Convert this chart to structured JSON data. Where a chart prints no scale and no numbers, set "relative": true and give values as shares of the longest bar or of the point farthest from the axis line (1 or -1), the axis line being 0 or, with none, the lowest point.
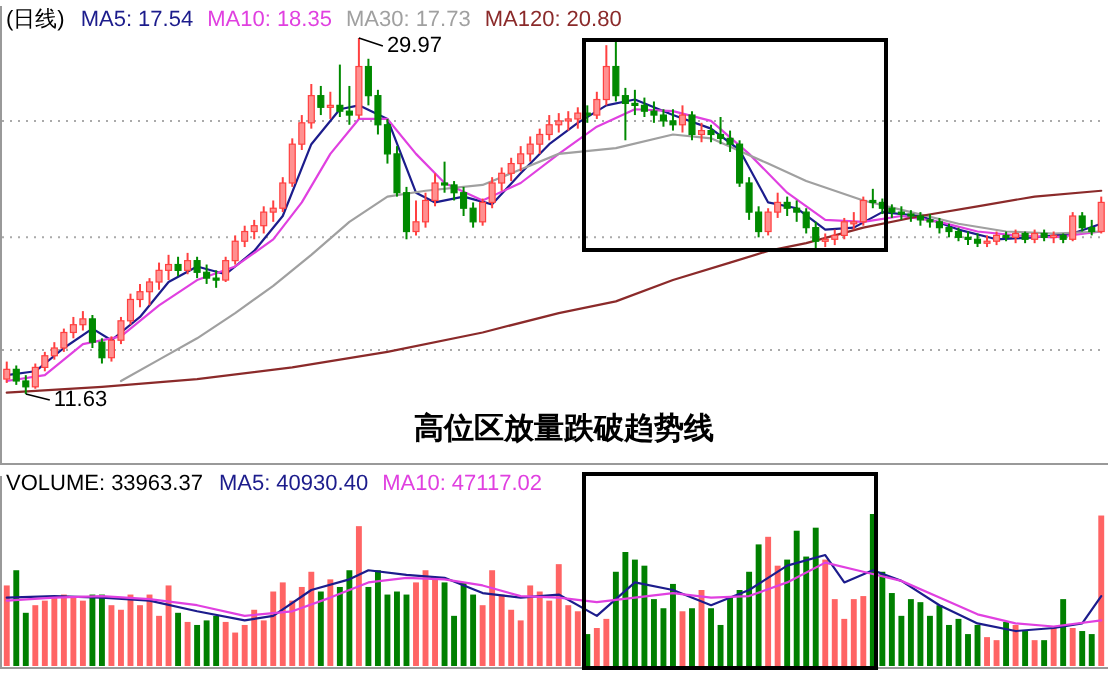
{
  "chart_data": [
    {
      "type": "candlestick",
      "title": "(日线)",
      "legend": "top left",
      "grid": "y",
      "yticks": [
        {
          "value": 25.7,
          "label": null
        },
        {
          "value": 19.7,
          "label": null
        },
        {
          "value": 13.9,
          "label": null
        }
      ],
      "categories": [
        null,
        null,
        null,
        null,
        null,
        null,
        null,
        null,
        null,
        null,
        null,
        null,
        null,
        null,
        null,
        null,
        null,
        null,
        null,
        null,
        null,
        null,
        null,
        null,
        null,
        null,
        null,
        null,
        null,
        null,
        null,
        null,
        null,
        null,
        null,
        null,
        null,
        null,
        null,
        null,
        null,
        null,
        null,
        null,
        null,
        null,
        null,
        null,
        null,
        null,
        null,
        null,
        null,
        null,
        null,
        null,
        null,
        null,
        null,
        null,
        null,
        null,
        null,
        null,
        null,
        null,
        null,
        null,
        null,
        null,
        null,
        null,
        null,
        null,
        null,
        null,
        null,
        null,
        null,
        null,
        null,
        null,
        null,
        null,
        null,
        null,
        null,
        null,
        null,
        null,
        null,
        null,
        null,
        null,
        null,
        null,
        null,
        null,
        null,
        null,
        null,
        null,
        null,
        null,
        null,
        null,
        null,
        null,
        null,
        null,
        null,
        null,
        null,
        null,
        null,
        null
      ],
      "ohlc": [
        [
          12.4,
          13.3,
          12.2,
          12.9
        ],
        [
          12.9,
          13.1,
          12.1,
          12.3
        ],
        [
          12.3,
          12.6,
          11.63,
          12.0
        ],
        [
          12.0,
          13.2,
          11.9,
          13.0
        ],
        [
          13.0,
          13.8,
          12.8,
          13.6
        ],
        [
          13.6,
          14.3,
          13.4,
          14.0
        ],
        [
          14.0,
          15.0,
          13.8,
          14.8
        ],
        [
          14.8,
          15.6,
          14.5,
          15.2
        ],
        [
          15.2,
          15.9,
          14.9,
          15.5
        ],
        [
          15.5,
          15.7,
          14.0,
          14.3
        ],
        [
          14.3,
          14.5,
          13.2,
          13.5
        ],
        [
          13.5,
          14.6,
          13.3,
          14.4
        ],
        [
          14.4,
          15.6,
          14.2,
          15.4
        ],
        [
          15.4,
          16.8,
          15.2,
          16.5
        ],
        [
          16.5,
          17.3,
          16.1,
          16.9
        ],
        [
          16.9,
          17.6,
          16.2,
          17.4
        ],
        [
          17.4,
          18.4,
          17.0,
          18.0
        ],
        [
          18.0,
          18.8,
          17.5,
          18.3
        ],
        [
          18.3,
          18.7,
          17.7,
          18.0
        ],
        [
          18.0,
          18.9,
          17.8,
          18.5
        ],
        [
          18.5,
          18.7,
          17.6,
          17.9
        ],
        [
          17.9,
          18.3,
          17.3,
          17.6
        ],
        [
          17.6,
          18.0,
          17.1,
          17.5
        ],
        [
          17.5,
          18.7,
          17.4,
          18.5
        ],
        [
          18.5,
          19.8,
          18.3,
          19.5
        ],
        [
          19.5,
          20.3,
          19.2,
          20.0
        ],
        [
          20.0,
          20.6,
          19.6,
          20.3
        ],
        [
          20.3,
          21.3,
          19.9,
          21.0
        ],
        [
          21.0,
          21.6,
          20.5,
          21.2
        ],
        [
          21.2,
          22.8,
          21.0,
          22.5
        ],
        [
          22.5,
          24.8,
          22.3,
          24.5
        ],
        [
          24.5,
          26.0,
          24.2,
          25.6
        ],
        [
          25.6,
          27.6,
          25.3,
          27.0
        ],
        [
          27.0,
          27.5,
          26.0,
          26.4
        ],
        [
          26.4,
          27.2,
          25.8,
          26.5
        ],
        [
          26.5,
          28.6,
          25.9,
          26.2
        ],
        [
          26.2,
          27.5,
          25.5,
          26.0
        ],
        [
          26.0,
          29.97,
          25.8,
          28.5
        ],
        [
          28.5,
          28.9,
          26.5,
          27.0
        ],
        [
          27.0,
          27.3,
          25.0,
          25.5
        ],
        [
          25.5,
          25.8,
          23.5,
          24.0
        ],
        [
          24.0,
          24.4,
          21.8,
          22.0
        ],
        [
          22.0,
          22.3,
          19.6,
          20.0
        ],
        [
          20.0,
          21.6,
          19.8,
          20.5
        ],
        [
          20.5,
          22.0,
          20.2,
          21.6
        ],
        [
          21.6,
          23.0,
          21.3,
          22.5
        ],
        [
          22.5,
          23.6,
          22.0,
          22.4
        ],
        [
          22.4,
          22.6,
          21.6,
          22.0
        ],
        [
          22.0,
          22.3,
          20.8,
          21.2
        ],
        [
          21.2,
          21.5,
          20.2,
          20.5
        ],
        [
          20.5,
          21.7,
          20.3,
          21.5
        ],
        [
          21.5,
          22.8,
          21.2,
          22.5
        ],
        [
          22.5,
          23.3,
          22.1,
          23.0
        ],
        [
          23.0,
          23.8,
          22.6,
          23.5
        ],
        [
          23.5,
          24.4,
          23.1,
          24.0
        ],
        [
          24.0,
          24.9,
          23.6,
          24.5
        ],
        [
          24.5,
          25.3,
          24.0,
          25.0
        ],
        [
          25.0,
          26.0,
          24.7,
          25.5
        ],
        [
          25.5,
          26.1,
          25.1,
          25.7
        ],
        [
          25.7,
          26.2,
          25.2,
          25.8
        ],
        [
          25.8,
          26.4,
          25.3,
          26.1
        ],
        [
          26.1,
          26.5,
          25.6,
          26.0
        ],
        [
          26.0,
          27.2,
          25.8,
          26.8
        ],
        [
          26.8,
          29.6,
          26.5,
          28.5
        ],
        [
          28.5,
          29.9,
          26.7,
          27.0
        ],
        [
          27.0,
          27.4,
          24.7,
          26.6
        ],
        [
          26.6,
          27.3,
          26.0,
          26.5
        ],
        [
          26.5,
          26.9,
          25.9,
          26.2
        ],
        [
          26.2,
          26.7,
          25.6,
          26.0
        ],
        [
          26.0,
          26.3,
          25.4,
          25.7
        ],
        [
          25.7,
          26.3,
          25.2,
          25.5
        ],
        [
          25.5,
          26.5,
          25.1,
          26.0
        ],
        [
          26.0,
          26.2,
          24.7,
          25.0
        ],
        [
          25.0,
          25.6,
          24.6,
          25.2
        ],
        [
          25.2,
          25.5,
          24.6,
          25.0
        ],
        [
          25.0,
          25.9,
          24.5,
          24.8
        ],
        [
          24.8,
          25.2,
          24.1,
          24.5
        ],
        [
          24.5,
          24.7,
          22.3,
          22.5
        ],
        [
          22.5,
          22.8,
          20.6,
          21.0
        ],
        [
          21.0,
          21.3,
          19.7,
          20.0
        ],
        [
          20.0,
          21.2,
          19.8,
          21.0
        ],
        [
          21.0,
          22.0,
          20.7,
          21.5
        ],
        [
          21.5,
          21.8,
          20.8,
          21.2
        ],
        [
          21.2,
          21.6,
          20.5,
          21.0
        ],
        [
          21.0,
          21.2,
          19.9,
          20.2
        ],
        [
          20.2,
          20.5,
          19.0,
          19.5
        ],
        [
          19.5,
          19.9,
          19.2,
          19.6
        ],
        [
          19.6,
          20.1,
          19.3,
          19.8
        ],
        [
          19.8,
          20.7,
          19.6,
          20.5
        ],
        [
          20.5,
          21.0,
          20.1,
          20.5
        ],
        [
          20.5,
          21.8,
          20.3,
          21.6
        ],
        [
          21.6,
          22.2,
          21.2,
          21.5
        ],
        [
          21.5,
          21.7,
          20.9,
          21.2
        ],
        [
          21.2,
          21.4,
          20.7,
          21.0
        ],
        [
          21.0,
          21.3,
          20.6,
          20.9
        ],
        [
          20.9,
          21.1,
          20.5,
          20.8
        ],
        [
          20.8,
          21.0,
          20.3,
          20.6
        ],
        [
          20.6,
          20.9,
          20.2,
          20.5
        ],
        [
          20.5,
          20.7,
          19.9,
          20.2
        ],
        [
          20.2,
          20.4,
          19.7,
          20.0
        ],
        [
          20.0,
          20.2,
          19.5,
          19.7
        ],
        [
          19.7,
          20.0,
          19.3,
          19.6
        ],
        [
          19.6,
          19.9,
          19.2,
          19.4
        ],
        [
          19.4,
          19.8,
          19.2,
          19.5
        ],
        [
          19.5,
          20.0,
          19.3,
          19.8
        ],
        [
          19.8,
          20.0,
          19.5,
          19.7
        ],
        [
          19.7,
          20.1,
          19.4,
          19.9
        ],
        [
          19.9,
          20.0,
          19.4,
          19.6
        ],
        [
          19.6,
          20.1,
          19.4,
          19.9
        ],
        [
          19.9,
          20.1,
          19.5,
          19.7
        ],
        [
          19.7,
          20.0,
          19.4,
          19.8
        ],
        [
          19.8,
          19.9,
          19.4,
          19.6
        ],
        [
          19.6,
          21.0,
          19.5,
          20.8
        ],
        [
          20.8,
          21.0,
          20.0,
          20.2
        ],
        [
          20.2,
          20.6,
          19.8,
          20.0
        ],
        [
          20.0,
          21.8,
          19.9,
          21.5
        ]
      ],
      "series": [
        {
          "type": "line",
          "name": "MA5: 17.54",
          "color": "#1c1c8c",
          "values": [
            12.6,
            null,
            null,
            12.8,
            null,
            null,
            14.0,
            null,
            null,
            15.0,
            null,
            14.4,
            null,
            null,
            15.6,
            null,
            null,
            17.4,
            null,
            null,
            18.2,
            null,
            null,
            17.8,
            null,
            null,
            19.0,
            null,
            null,
            20.8,
            null,
            null,
            24.5,
            null,
            null,
            26.3,
            null,
            26.5,
            null,
            null,
            25.8,
            null,
            null,
            22.0,
            null,
            21.5,
            null,
            null,
            21.8,
            null,
            null,
            21.4,
            null,
            null,
            23.0,
            null,
            null,
            24.5,
            null,
            null,
            25.6,
            null,
            null,
            26.5,
            null,
            null,
            26.8,
            null,
            null,
            null,
            26.0,
            null,
            null,
            null,
            25.3,
            null,
            null,
            24.2,
            null,
            null,
            21.5,
            null,
            null,
            21.2,
            null,
            null,
            20.1,
            null,
            null,
            20.2,
            null,
            null,
            21.0,
            null,
            null,
            null,
            20.8,
            null,
            null,
            null,
            20.1,
            null,
            null,
            null,
            19.6,
            null,
            null,
            null,
            19.7,
            null,
            null,
            null,
            19.9,
            null,
            null,
            20.4
          ]
        },
        {
          "type": "line",
          "name": "MA10: 18.35",
          "color": "#e040e0",
          "values": [
            12.3,
            null,
            null,
            null,
            12.6,
            null,
            null,
            null,
            14.2,
            null,
            null,
            null,
            14.6,
            null,
            null,
            null,
            16.2,
            null,
            null,
            null,
            17.5,
            null,
            null,
            null,
            18.2,
            null,
            null,
            null,
            19.6,
            null,
            null,
            21.5,
            null,
            null,
            24.0,
            null,
            null,
            25.8,
            null,
            null,
            25.8,
            null,
            null,
            24.0,
            null,
            null,
            22.5,
            null,
            null,
            null,
            21.6,
            null,
            null,
            null,
            22.5,
            null,
            null,
            null,
            24.0,
            null,
            null,
            null,
            25.4,
            null,
            null,
            null,
            26.3,
            null,
            null,
            null,
            26.2,
            null,
            null,
            null,
            25.7,
            null,
            null,
            null,
            24.0,
            null,
            null,
            null,
            22.0,
            null,
            null,
            null,
            20.6,
            null,
            null,
            null,
            20.5,
            null,
            null,
            null,
            20.8,
            null,
            null,
            null,
            20.5,
            null,
            null,
            null,
            20.0,
            null,
            null,
            null,
            19.8,
            null,
            null,
            null,
            19.7,
            null,
            null,
            null,
            null,
            20.0
          ]
        },
        {
          "type": "line",
          "name": "MA30: 17.73",
          "color": "#a0a0a0",
          "values": [
            null,
            null,
            null,
            null,
            null,
            null,
            null,
            null,
            null,
            null,
            null,
            null,
            12.3,
            null,
            null,
            null,
            13.4,
            null,
            null,
            null,
            14.5,
            null,
            null,
            null,
            15.8,
            null,
            null,
            null,
            17.2,
            null,
            null,
            null,
            18.8,
            null,
            null,
            null,
            20.5,
            null,
            null,
            null,
            21.8,
            null,
            null,
            null,
            22.1,
            null,
            null,
            null,
            null,
            null,
            22.4,
            null,
            null,
            null,
            null,
            null,
            null,
            null,
            24.0,
            null,
            null,
            null,
            null,
            null,
            24.3,
            null,
            null,
            null,
            null,
            null,
            25.0,
            null,
            null,
            null,
            24.8,
            null,
            null,
            null,
            null,
            null,
            23.5,
            null,
            null,
            null,
            22.6,
            null,
            null,
            null,
            null,
            null,
            21.6,
            null,
            null,
            null,
            null,
            21.0,
            null,
            null,
            null,
            null,
            20.4,
            null,
            null,
            null,
            null,
            20.0,
            null,
            null,
            null,
            null,
            19.9,
            null,
            null,
            null,
            null,
            20.0
          ]
        },
        {
          "type": "line",
          "name": "MA120: 20.80",
          "color": "#8b2a2a",
          "values": [
            11.7,
            null,
            null,
            null,
            null,
            null,
            null,
            null,
            null,
            null,
            12.0,
            null,
            null,
            null,
            null,
            null,
            null,
            null,
            null,
            null,
            12.4,
            null,
            null,
            null,
            null,
            null,
            null,
            null,
            null,
            null,
            13.0,
            null,
            null,
            null,
            null,
            null,
            null,
            null,
            null,
            null,
            13.8,
            null,
            null,
            null,
            null,
            null,
            null,
            null,
            null,
            null,
            14.8,
            null,
            null,
            null,
            null,
            null,
            null,
            null,
            15.8,
            null,
            null,
            null,
            null,
            null,
            16.4,
            null,
            null,
            null,
            null,
            null,
            17.5,
            null,
            null,
            null,
            null,
            null,
            18.4,
            null,
            null,
            null,
            19.0,
            null,
            null,
            null,
            19.4,
            null,
            null,
            null,
            null,
            null,
            20.2,
            null,
            null,
            null,
            null,
            null,
            20.8,
            null,
            null,
            null,
            null,
            null,
            21.3,
            null,
            null,
            null,
            null,
            null,
            21.8,
            null,
            null,
            null,
            null,
            null,
            null,
            22.1
          ]
        }
      ],
      "annotations": [
        "29.97",
        "11.63",
        "高位区放量跌破趋势线"
      ]
    },
    {
      "type": "bar",
      "title": "VOLUME: 33963.37",
      "relative": true,
      "legend": "top left",
      "categories": [
        null,
        null,
        null,
        null,
        null,
        null,
        null,
        null,
        null,
        null,
        null,
        null,
        null,
        null,
        null,
        null,
        null,
        null,
        null,
        null,
        null,
        null,
        null,
        null,
        null,
        null,
        null,
        null,
        null,
        null,
        null,
        null,
        null,
        null,
        null,
        null,
        null,
        null,
        null,
        null,
        null,
        null,
        null,
        null,
        null,
        null,
        null,
        null,
        null,
        null,
        null,
        null,
        null,
        null,
        null,
        null,
        null,
        null,
        null,
        null,
        null,
        null,
        null,
        null,
        null,
        null,
        null,
        null,
        null,
        null,
        null,
        null,
        null,
        null,
        null,
        null,
        null,
        null,
        null,
        null,
        null,
        null,
        null,
        null,
        null,
        null,
        null,
        null,
        null,
        null,
        null,
        null,
        null,
        null,
        null,
        null,
        null,
        null,
        null,
        null,
        null,
        null,
        null,
        null,
        null,
        null,
        null,
        null,
        null,
        null,
        null,
        null,
        null,
        null,
        null,
        null
      ],
      "series": [
        {
          "type": "bar",
          "values": [
            0.53,
            0.63,
            0.35,
            0.4,
            0.43,
            0.45,
            0.47,
            0.45,
            0.43,
            0.47,
            0.47,
            0.4,
            0.37,
            0.47,
            0.4,
            0.47,
            0.33,
            0.53,
            0.35,
            0.29,
            0.27,
            0.3,
            0.33,
            0.29,
            0.22,
            0.27,
            0.37,
            0.3,
            0.49,
            0.55,
            0.43,
            0.52,
            0.62,
            0.49,
            0.57,
            0.52,
            0.63,
            0.92,
            0.52,
            0.63,
            0.47,
            0.49,
            0.47,
            0.55,
            0.63,
            0.57,
            0.55,
            0.33,
            0.55,
            0.47,
            0.4,
            0.63,
            0.47,
            0.37,
            0.3,
            0.53,
            0.49,
            0.43,
            0.67,
            0.4,
            0.36,
            0.21,
            0.25,
            0.31,
            0.62,
            0.75,
            0.7,
            0.66,
            0.44,
            0.38,
            0.54,
            0.36,
            0.38,
            0.5,
            0.38,
            0.27,
            0.46,
            0.5,
            0.62,
            0.8,
            0.85,
            0.66,
            0.7,
            0.89,
            0.72,
            0.91,
            0.7,
            0.44,
            0.31,
            0.44,
            0.46,
            1.0,
            0.62,
            0.48,
            0.33,
            0.44,
            0.42,
            0.33,
            0.4,
            0.27,
            0.31,
            0.21,
            0.27,
            0.19,
            0.17,
            0.29,
            0.27,
            0.23,
            0.17,
            0.17,
            0.25,
            0.44,
            0.25,
            0.23,
            0.21,
            0.99
          ],
          "colors": [
            "#ff6464",
            "#008000",
            "#008000",
            "#ff6464",
            "#ff6464",
            "#ff6464",
            "#ff6464",
            "#ff6464",
            "#ff6464",
            "#008000",
            "#008000",
            "#ff6464",
            "#ff6464",
            "#ff6464",
            "#ff6464",
            "#ff6464",
            "#ff6464",
            "#ff6464",
            "#008000",
            "#ff6464",
            "#008000",
            "#008000",
            "#008000",
            "#ff6464",
            "#ff6464",
            "#ff6464",
            "#ff6464",
            "#ff6464",
            "#ff6464",
            "#ff6464",
            "#ff6464",
            "#ff6464",
            "#ff6464",
            "#008000",
            "#ff6464",
            "#008000",
            "#008000",
            "#ff6464",
            "#008000",
            "#008000",
            "#008000",
            "#008000",
            "#008000",
            "#ff6464",
            "#ff6464",
            "#ff6464",
            "#008000",
            "#008000",
            "#008000",
            "#008000",
            "#ff6464",
            "#ff6464",
            "#ff6464",
            "#ff6464",
            "#ff6464",
            "#ff6464",
            "#ff6464",
            "#ff6464",
            "#ff6464",
            "#ff6464",
            "#ff6464",
            "#008000",
            "#ff6464",
            "#ff6464",
            "#008000",
            "#008000",
            "#008000",
            "#008000",
            "#008000",
            "#008000",
            "#008000",
            "#ff6464",
            "#008000",
            "#ff6464",
            "#008000",
            "#008000",
            "#008000",
            "#008000",
            "#008000",
            "#008000",
            "#ff6464",
            "#ff6464",
            "#008000",
            "#008000",
            "#008000",
            "#008000",
            "#ff6464",
            "#ff6464",
            "#ff6464",
            "#ff6464",
            "#ff6464",
            "#008000",
            "#008000",
            "#008000",
            "#008000",
            "#008000",
            "#008000",
            "#008000",
            "#008000",
            "#008000",
            "#008000",
            "#008000",
            "#008000",
            "#ff6464",
            "#ff6464",
            "#008000",
            "#ff6464",
            "#008000",
            "#ff6464",
            "#008000",
            "#ff6464",
            "#008000",
            "#ff6464",
            "#008000",
            "#008000",
            "#ff6464"
          ]
        },
        {
          "type": "line",
          "name": "MA5: 40930.40",
          "color": "#1c1c8c",
          "values": [
            0.45,
            null,
            null,
            null,
            null,
            0.46,
            null,
            null,
            null,
            null,
            0.45,
            null,
            null,
            null,
            null,
            0.43,
            null,
            null,
            null,
            null,
            0.36,
            null,
            null,
            null,
            null,
            0.3,
            null,
            null,
            0.33,
            null,
            null,
            null,
            0.5,
            null,
            null,
            null,
            0.57,
            null,
            0.63,
            null,
            null,
            null,
            0.6,
            null,
            null,
            null,
            0.58,
            null,
            null,
            null,
            0.48,
            null,
            null,
            null,
            0.45,
            null,
            null,
            null,
            0.47,
            null,
            null,
            null,
            0.33,
            null,
            null,
            null,
            0.55,
            null,
            null,
            null,
            0.5,
            null,
            null,
            null,
            0.4,
            null,
            null,
            null,
            0.5,
            null,
            null,
            null,
            0.66,
            null,
            null,
            null,
            0.73,
            null,
            0.55,
            null,
            null,
            0.63,
            null,
            null,
            0.56,
            null,
            null,
            null,
            0.4,
            null,
            null,
            null,
            0.28,
            null,
            null,
            null,
            0.23,
            null,
            null,
            null,
            0.25,
            null,
            null,
            0.28,
            null,
            0.46
          ]
        },
        {
          "type": "line",
          "name": "MA10: 47117.02",
          "color": "#e040e0",
          "values": [
            0.43,
            null,
            null,
            null,
            null,
            0.45,
            null,
            null,
            null,
            null,
            0.46,
            null,
            null,
            null,
            null,
            0.44,
            null,
            null,
            null,
            null,
            0.4,
            null,
            null,
            null,
            null,
            0.33,
            null,
            null,
            null,
            null,
            0.36,
            null,
            null,
            null,
            0.45,
            null,
            null,
            null,
            0.55,
            null,
            null,
            null,
            0.58,
            null,
            null,
            null,
            0.57,
            null,
            null,
            null,
            0.53,
            null,
            null,
            null,
            0.46,
            null,
            null,
            null,
            0.45,
            null,
            null,
            null,
            0.42,
            null,
            null,
            null,
            0.45,
            null,
            null,
            null,
            0.48,
            null,
            null,
            null,
            0.45,
            null,
            null,
            null,
            0.46,
            null,
            null,
            null,
            0.55,
            null,
            null,
            null,
            0.68,
            null,
            null,
            null,
            0.62,
            null,
            null,
            null,
            0.56,
            null,
            null,
            null,
            0.45,
            null,
            null,
            null,
            0.34,
            null,
            null,
            null,
            0.28,
            null,
            null,
            null,
            0.26,
            null,
            null,
            null,
            null,
            0.3
          ]
        }
      ]
    }
  ]
}
